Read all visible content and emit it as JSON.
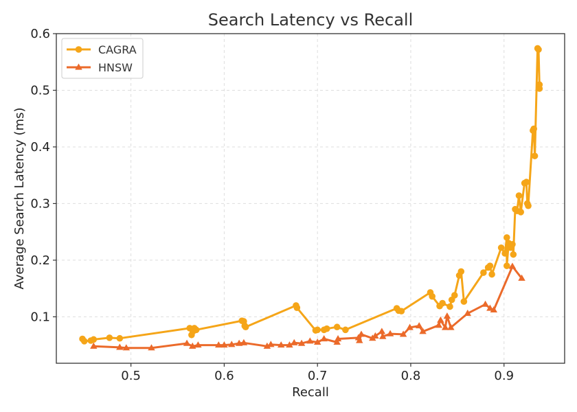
{
  "chart_data": {
    "type": "line",
    "title": "Search Latency vs Recall",
    "xlabel": "Recall",
    "ylabel": "Average Search Latency (ms)",
    "xlim": [
      0.42,
      0.965
    ],
    "ylim": [
      0.018,
      0.6
    ],
    "xticks": [
      0.5,
      0.6,
      0.7,
      0.8,
      0.9
    ],
    "xtick_labels": [
      "0.5",
      "0.6",
      "0.7",
      "0.8",
      "0.9"
    ],
    "yticks": [
      0.1,
      0.2,
      0.3,
      0.4,
      0.5,
      0.6
    ],
    "ytick_labels": [
      "0.1",
      "0.2",
      "0.3",
      "0.4",
      "0.5",
      "0.6"
    ],
    "grid": true,
    "legend_position": "top-left",
    "series": [
      {
        "name": "CAGRA",
        "color": "#f5a518",
        "marker": "circle",
        "points": [
          [
            0.448,
            0.061
          ],
          [
            0.45,
            0.057
          ],
          [
            0.457,
            0.058
          ],
          [
            0.46,
            0.06
          ],
          [
            0.477,
            0.063
          ],
          [
            0.488,
            0.062
          ],
          [
            0.563,
            0.08
          ],
          [
            0.565,
            0.068
          ],
          [
            0.567,
            0.075
          ],
          [
            0.568,
            0.08
          ],
          [
            0.57,
            0.077
          ],
          [
            0.619,
            0.093
          ],
          [
            0.621,
            0.092
          ],
          [
            0.622,
            0.084
          ],
          [
            0.623,
            0.082
          ],
          [
            0.677,
            0.12
          ],
          [
            0.678,
            0.116
          ],
          [
            0.698,
            0.076
          ],
          [
            0.7,
            0.077
          ],
          [
            0.707,
            0.077
          ],
          [
            0.71,
            0.079
          ],
          [
            0.721,
            0.082
          ],
          [
            0.73,
            0.077
          ],
          [
            0.785,
            0.115
          ],
          [
            0.787,
            0.111
          ],
          [
            0.79,
            0.11
          ],
          [
            0.821,
            0.143
          ],
          [
            0.823,
            0.136
          ],
          [
            0.831,
            0.119
          ],
          [
            0.834,
            0.124
          ],
          [
            0.842,
            0.118
          ],
          [
            0.844,
            0.13
          ],
          [
            0.847,
            0.138
          ],
          [
            0.852,
            0.173
          ],
          [
            0.854,
            0.18
          ],
          [
            0.857,
            0.127
          ],
          [
            0.878,
            0.178
          ],
          [
            0.883,
            0.187
          ],
          [
            0.885,
            0.19
          ],
          [
            0.887,
            0.175
          ],
          [
            0.897,
            0.222
          ],
          [
            0.901,
            0.212
          ],
          [
            0.903,
            0.24
          ],
          [
            0.903,
            0.19
          ],
          [
            0.905,
            0.23
          ],
          [
            0.907,
            0.222
          ],
          [
            0.909,
            0.228
          ],
          [
            0.91,
            0.21
          ],
          [
            0.912,
            0.29
          ],
          [
            0.914,
            0.287
          ],
          [
            0.916,
            0.314
          ],
          [
            0.918,
            0.285
          ],
          [
            0.922,
            0.336
          ],
          [
            0.924,
            0.338
          ],
          [
            0.925,
            0.3
          ],
          [
            0.926,
            0.296
          ],
          [
            0.931,
            0.429
          ],
          [
            0.932,
            0.432
          ],
          [
            0.933,
            0.384
          ],
          [
            0.936,
            0.574
          ],
          [
            0.937,
            0.572
          ],
          [
            0.938,
            0.51
          ],
          [
            0.938,
            0.503
          ]
        ]
      },
      {
        "name": "HNSW",
        "color": "#eb6a2a",
        "marker": "triangle",
        "points": [
          [
            0.46,
            0.048
          ],
          [
            0.488,
            0.046
          ],
          [
            0.495,
            0.045
          ],
          [
            0.522,
            0.045
          ],
          [
            0.56,
            0.053
          ],
          [
            0.566,
            0.048
          ],
          [
            0.572,
            0.05
          ],
          [
            0.594,
            0.05
          ],
          [
            0.6,
            0.05
          ],
          [
            0.608,
            0.051
          ],
          [
            0.616,
            0.053
          ],
          [
            0.621,
            0.054
          ],
          [
            0.646,
            0.048
          ],
          [
            0.65,
            0.051
          ],
          [
            0.661,
            0.05
          ],
          [
            0.67,
            0.05
          ],
          [
            0.675,
            0.054
          ],
          [
            0.683,
            0.053
          ],
          [
            0.692,
            0.057
          ],
          [
            0.7,
            0.055
          ],
          [
            0.707,
            0.061
          ],
          [
            0.721,
            0.055
          ],
          [
            0.722,
            0.061
          ],
          [
            0.744,
            0.063
          ],
          [
            0.745,
            0.058
          ],
          [
            0.747,
            0.069
          ],
          [
            0.759,
            0.062
          ],
          [
            0.762,
            0.066
          ],
          [
            0.769,
            0.074
          ],
          [
            0.77,
            0.065
          ],
          [
            0.778,
            0.07
          ],
          [
            0.792,
            0.069
          ],
          [
            0.799,
            0.081
          ],
          [
            0.809,
            0.084
          ],
          [
            0.813,
            0.074
          ],
          [
            0.83,
            0.085
          ],
          [
            0.832,
            0.094
          ],
          [
            0.837,
            0.081
          ],
          [
            0.839,
            0.101
          ],
          [
            0.843,
            0.081
          ],
          [
            0.861,
            0.106
          ],
          [
            0.88,
            0.122
          ],
          [
            0.885,
            0.115
          ],
          [
            0.889,
            0.112
          ],
          [
            0.909,
            0.189
          ],
          [
            0.919,
            0.168
          ]
        ]
      }
    ]
  }
}
